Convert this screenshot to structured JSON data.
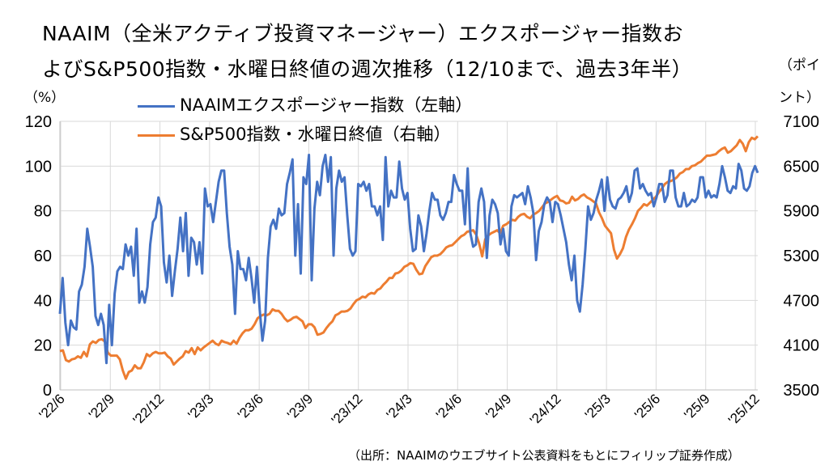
{
  "chart_data": {
    "type": "line",
    "title_line1": "NAAIM（全米アクティブ投資マネージャー）エクスポージャー指数お",
    "title_line2": "よびS&P500指数・水曜日終値の週次推移（12/10まで、過去3年半）",
    "left_unit": "（%）",
    "right_unit_line1": "（ポイ",
    "right_unit_line2": "ント）",
    "source": "（出所：NAAIMのウエブサイト公表資料をもとにフィリップ証券作成）",
    "left_axis": {
      "min": 0,
      "max": 120,
      "ticks": [
        "0",
        "20",
        "40",
        "60",
        "80",
        "100",
        "120"
      ]
    },
    "right_axis": {
      "min": 3500,
      "max": 7100,
      "ticks": [
        "3500",
        "4100",
        "4700",
        "5300",
        "5900",
        "6500",
        "7100"
      ]
    },
    "x_ticks": [
      "'22/6",
      "'22/9",
      "'22/12",
      "'23/3",
      "'23/6",
      "'23/9",
      "'23/12",
      "'24/3",
      "'24/6",
      "'24/9",
      "'24/12",
      "'25/3",
      "'25/6",
      "'25/9",
      "'25/12"
    ],
    "grid": true,
    "colors": {
      "naaim": "#4472c4",
      "sp500": "#ed7d31",
      "grid": "#d9d9d9",
      "axis": "#bfbfbf"
    },
    "series": [
      {
        "name": "NAAIMエクスポージャー指数（左軸）",
        "axis": "left",
        "values": [
          34,
          50,
          30,
          20,
          31,
          28,
          27,
          44,
          47,
          55,
          72,
          64,
          55,
          33,
          29,
          34,
          29,
          12,
          38,
          20,
          43,
          53,
          55,
          54,
          65,
          60,
          64,
          51,
          72,
          39,
          44,
          39,
          46,
          65,
          75,
          77,
          86,
          82,
          57,
          48,
          60,
          42,
          53,
          63,
          77,
          62,
          79,
          51,
          68,
          66,
          56,
          66,
          52,
          90,
          82,
          83,
          75,
          84,
          93,
          98,
          98,
          79,
          64,
          56,
          34,
          62,
          54,
          54,
          49,
          59,
          50,
          39,
          55,
          36,
          22,
          31,
          59,
          73,
          76,
          72,
          81,
          78,
          79,
          92,
          97,
          103,
          60,
          83,
          52,
          95,
          92,
          105,
          49,
          81,
          93,
          87,
          100,
          105,
          93,
          104,
          60,
          90,
          98,
          93,
          95,
          78,
          63,
          60,
          62,
          92,
          91,
          93,
          89,
          92,
          82,
          82,
          78,
          82,
          67,
          104,
          82,
          89,
          86,
          86,
          102,
          90,
          85,
          88,
          72,
          62,
          63,
          78,
          73,
          62,
          70,
          80,
          88,
          85,
          85,
          78,
          76,
          79,
          84,
          84,
          96,
          92,
          89,
          89,
          74,
          99,
          70,
          64,
          65,
          84,
          90,
          84,
          59,
          78,
          85,
          83,
          79,
          65,
          72,
          62,
          60,
          82,
          87,
          86,
          87,
          88,
          83,
          91,
          86,
          79,
          58,
          71,
          75,
          83,
          86,
          84,
          75,
          84,
          83,
          78,
          72,
          66,
          56,
          49,
          60,
          40,
          35,
          47,
          63,
          82,
          76,
          79,
          85,
          89,
          94,
          80,
          95,
          85,
          82,
          81,
          85,
          86,
          88,
          91,
          84,
          88,
          98,
          99,
          90,
          92,
          89,
          87,
          88,
          82,
          86,
          92,
          92,
          84,
          87,
          98,
          98,
          86,
          82,
          82,
          88,
          82,
          83,
          85,
          84,
          86,
          95,
          95,
          86,
          89,
          86,
          87,
          86,
          92,
          100,
          95,
          89,
          88,
          91,
          90,
          101,
          98,
          90,
          89,
          91,
          97,
          100,
          97
        ],
        "values_weekly": []
      },
      {
        "name": "S&P500指数・水曜日終値（右軸）",
        "axis": "right",
        "values": [
          4020,
          4030,
          3900,
          3880,
          3910,
          3920,
          3950,
          3930,
          4010,
          3950,
          4110,
          4150,
          4130,
          4170,
          4180,
          4150,
          4000,
          3960,
          3960,
          3960,
          3910,
          3760,
          3650,
          3740,
          3760,
          3830,
          3790,
          3790,
          3870,
          3980,
          3950,
          3990,
          4010,
          3990,
          3990,
          4000,
          3950,
          3920,
          3840,
          3880,
          3920,
          3950,
          4020,
          4000,
          4060,
          3980,
          4070,
          4030,
          4070,
          4100,
          4130,
          4160,
          4120,
          4100,
          4160,
          4140,
          4130,
          4110,
          4160,
          4120,
          4200,
          4260,
          4300,
          4300,
          4320,
          4380,
          4460,
          4490,
          4510,
          4500,
          4520,
          4580,
          4560,
          4560,
          4520,
          4460,
          4420,
          4440,
          4470,
          4480,
          4450,
          4420,
          4330,
          4380,
          4380,
          4340,
          4240,
          4250,
          4270,
          4330,
          4380,
          4420,
          4500,
          4520,
          4550,
          4550,
          4560,
          4590,
          4650,
          4700,
          4720,
          4750,
          4740,
          4780,
          4800,
          4790,
          4840,
          4860,
          4910,
          4950,
          5000,
          5000,
          5060,
          5070,
          5100,
          5150,
          5170,
          5200,
          5190,
          5110,
          5050,
          5060,
          5160,
          5220,
          5280,
          5300,
          5300,
          5320,
          5360,
          5410,
          5430,
          5440,
          5480,
          5520,
          5560,
          5580,
          5620,
          5630,
          5640,
          5580,
          5460,
          5290,
          5520,
          5570,
          5600,
          5620,
          5640,
          5600,
          5700,
          5720,
          5750,
          5780,
          5770,
          5820,
          5850,
          5860,
          5820,
          5800,
          5850,
          5870,
          5900,
          5950,
          6000,
          6020,
          6050,
          6080,
          6100,
          6040,
          6030,
          6000,
          6010,
          6090,
          6040,
          6060,
          6100,
          6120,
          6080,
          6060,
          6030,
          6000,
          5880,
          5800,
          5700,
          5650,
          5600,
          5380,
          5260,
          5320,
          5400,
          5550,
          5650,
          5720,
          5800,
          5900,
          5940,
          5990,
          5970,
          6010,
          6050,
          6090,
          6150,
          6200,
          6260,
          6290,
          6300,
          6320,
          6350,
          6400,
          6420,
          6460,
          6460,
          6500,
          6510,
          6540,
          6560,
          6600,
          6640,
          6640,
          6650,
          6660,
          6700,
          6730,
          6750,
          6680,
          6700,
          6740,
          6780,
          6850,
          6800,
          6700,
          6820,
          6880,
          6860,
          6900
        ]
      }
    ]
  }
}
